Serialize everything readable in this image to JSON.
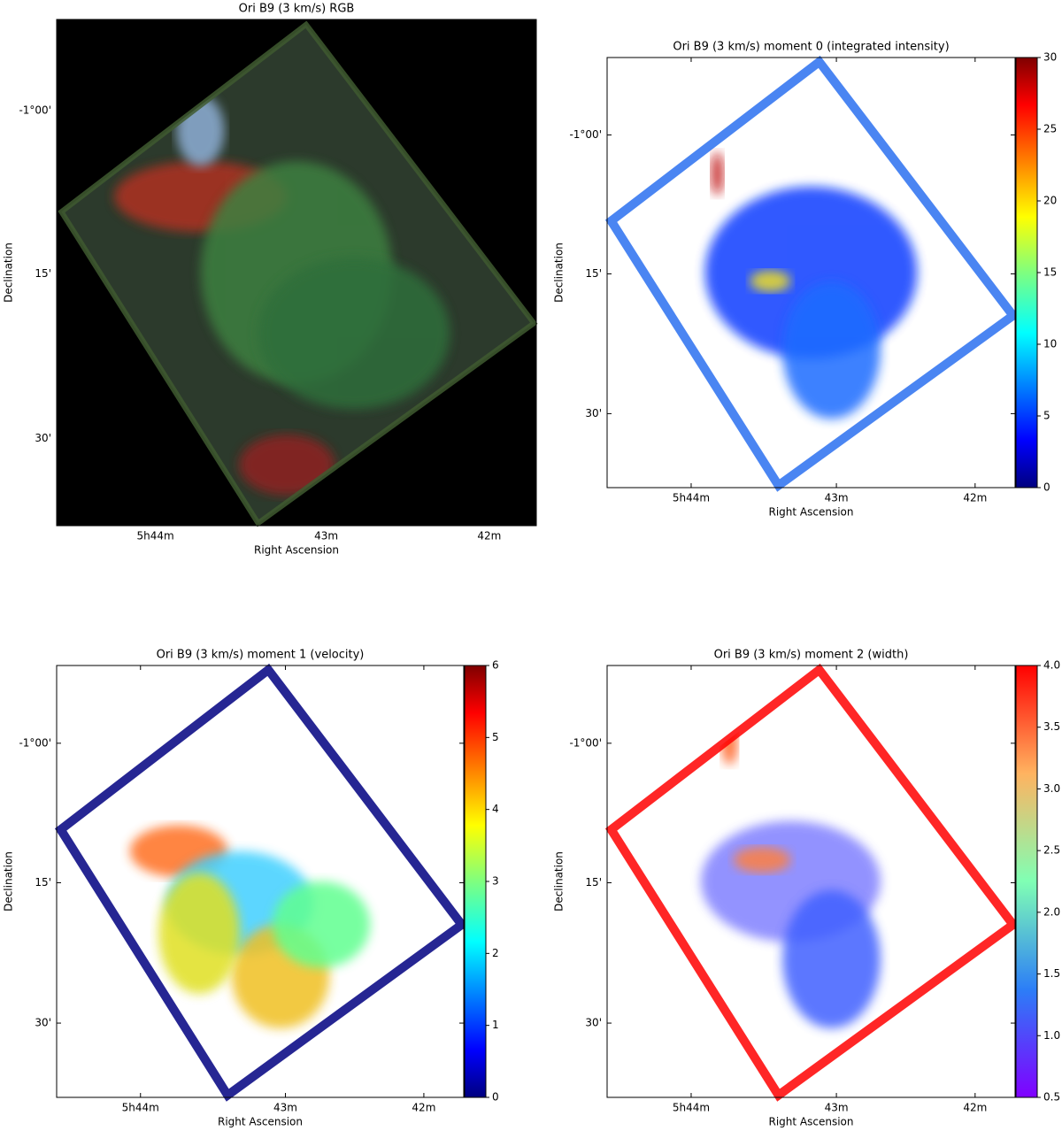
{
  "chart_data": [
    {
      "type": "image",
      "title": "Ori B9 (3 km/s)  RGB",
      "xlabel": "Right Ascension",
      "ylabel": "Declination",
      "xticklabels": [
        "5h44m",
        "43m",
        "42m"
      ],
      "yticklabels": [
        "-1°00'",
        "15'",
        "30'"
      ],
      "background": "#000000"
    },
    {
      "type": "image",
      "title": "Ori B9 (3 km/s) moment 0 (integrated intensity)",
      "xlabel": "Right Ascension",
      "ylabel": "Declination",
      "xticklabels": [
        "5h44m",
        "43m",
        "42m"
      ],
      "yticklabels": [
        "-1°00'",
        "15'",
        "30'"
      ],
      "background": "#ffffff",
      "colorbar": {
        "colormap": "jet",
        "ylim": [
          0,
          30
        ],
        "yticks": [
          0,
          5,
          10,
          15,
          20,
          25,
          30
        ]
      }
    },
    {
      "type": "image",
      "title": "Ori B9 (3 km/s) moment 1 (velocity)",
      "xlabel": "Right Ascension",
      "ylabel": "Declination",
      "xticklabels": [
        "5h44m",
        "43m",
        "42m"
      ],
      "yticklabels": [
        "-1°00'",
        "15'",
        "30'"
      ],
      "background": "#ffffff",
      "colorbar": {
        "colormap": "jet",
        "ylim": [
          0,
          6
        ],
        "yticks": [
          0,
          1,
          2,
          3,
          4,
          5,
          6
        ]
      }
    },
    {
      "type": "image",
      "title": "Ori B9 (3 km/s) moment 2 (width)",
      "xlabel": "Right Ascension",
      "ylabel": "Declination",
      "xticklabels": [
        "5h44m",
        "43m",
        "42m"
      ],
      "yticklabels": [
        "-1°00'",
        "15'",
        "30'"
      ],
      "background": "#ffffff",
      "colorbar": {
        "colormap": "rainbow",
        "ylim": [
          0.5,
          4.0
        ],
        "yticks": [
          0.5,
          {
            "value": 1.0,
            "label": "1.0"
          },
          1.5,
          {
            "value": 2.0,
            "label": "2.0"
          },
          2.5,
          {
            "value": 3.0,
            "label": "3.0"
          },
          3.5,
          {
            "value": 4.0,
            "label": "4.0"
          }
        ]
      }
    }
  ]
}
